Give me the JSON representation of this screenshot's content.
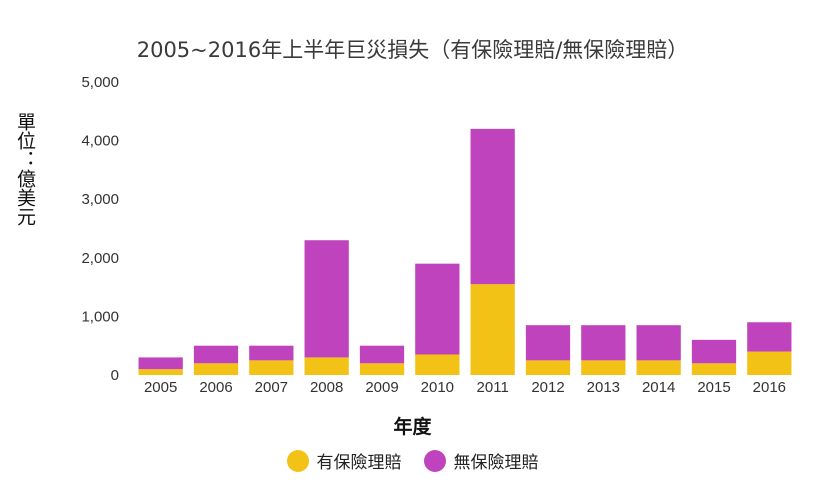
{
  "chart_data": {
    "type": "bar",
    "stacked": true,
    "title": "2005~2016年上半年巨災損失（有保險理賠/無保險理賠）",
    "xlabel": "年度",
    "ylabel": "單位：億美元",
    "ylim": [
      0,
      5000
    ],
    "yticks": [
      0,
      1000,
      2000,
      3000,
      4000,
      5000
    ],
    "ytick_labels": [
      "0",
      "1,000",
      "2,000",
      "3,000",
      "4,000",
      "5,000"
    ],
    "grid": false,
    "legend_position": "bottom",
    "categories": [
      "2005",
      "2006",
      "2007",
      "2008",
      "2009",
      "2010",
      "2011",
      "2012",
      "2013",
      "2014",
      "2015",
      "2016"
    ],
    "series": [
      {
        "name": "有保險理賠",
        "color": "#F2C316",
        "values": [
          100,
          200,
          250,
          300,
          200,
          350,
          1550,
          250,
          250,
          250,
          200,
          400
        ]
      },
      {
        "name": "無保險理賠",
        "color": "#C043BE",
        "values": [
          200,
          300,
          250,
          2000,
          300,
          1550,
          2650,
          600,
          600,
          600,
          400,
          500
        ]
      }
    ]
  }
}
